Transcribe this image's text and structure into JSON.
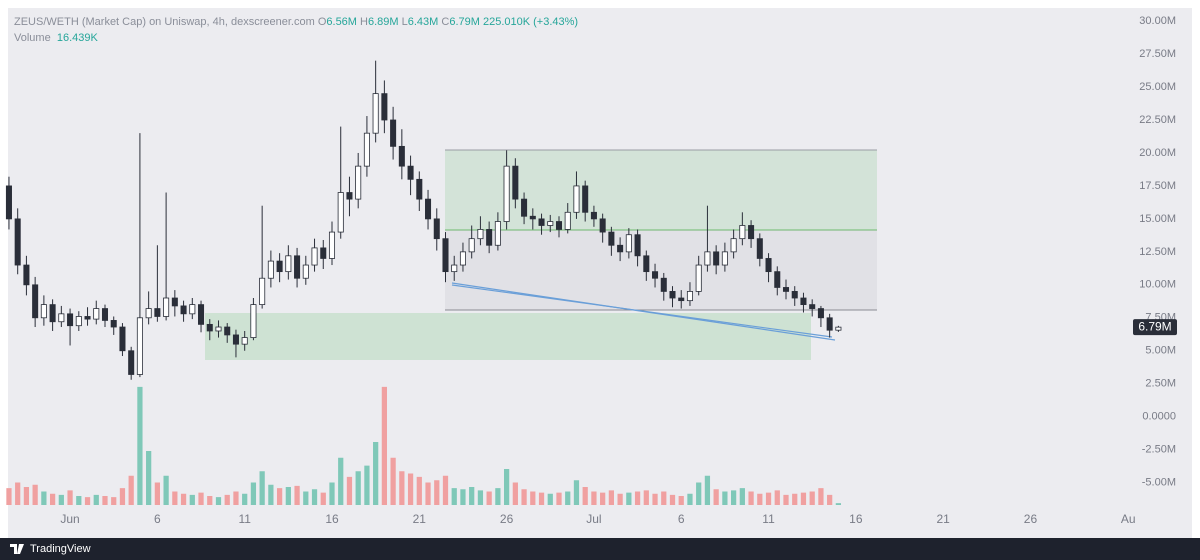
{
  "chart_data": {
    "type": "candlestick",
    "title": "ZEUS/WETH (Market Cap) on Uniswap, 4h, dexscreener.com",
    "header": {
      "o_label": "O",
      "open": "6.56M",
      "h_label": "H",
      "high": "6.89M",
      "l_label": "L",
      "low": "6.43M",
      "c_label": "C",
      "close": "6.79M",
      "change": "225.010K (+3.43%)",
      "volume_label": "Volume",
      "volume": "16.439K"
    },
    "x": [
      -3.5,
      -3,
      -2.5,
      -2,
      -1.5,
      -1,
      -0.5,
      0,
      0.5,
      1,
      1.5,
      2,
      2.5,
      3,
      3.5,
      4,
      4.5,
      5,
      5.5,
      6,
      6.5,
      7,
      7.5,
      8,
      8.5,
      9,
      9.5,
      10,
      10.5,
      11,
      11.5,
      12,
      12.5,
      13,
      13.5,
      14,
      14.5,
      15,
      15.5,
      16,
      16.5,
      17,
      17.5,
      18,
      18.5,
      19,
      19.5,
      20,
      20.5,
      21,
      21.5,
      22,
      22.5,
      23,
      23.5,
      24,
      24.5,
      25,
      25.5,
      26,
      26.5,
      27,
      27.5,
      28,
      28.5,
      29,
      29.5,
      30,
      30.5,
      31,
      31.5,
      32,
      32.5,
      33,
      33.5,
      34,
      34.5,
      35,
      35.5,
      36,
      36.5,
      37,
      37.5,
      38,
      38.5,
      39,
      39.5,
      40,
      40.5,
      41,
      41.5,
      42,
      42.5,
      43,
      43.5,
      44
    ],
    "open": [
      17.5,
      15.0,
      11.5,
      10.0,
      7.5,
      8.5,
      7.2,
      7.8,
      6.9,
      7.6,
      7.4,
      8.2,
      7.3,
      6.8,
      5.0,
      3.2,
      7.5,
      8.2,
      7.6,
      9.0,
      8.4,
      7.8,
      8.5,
      7.0,
      6.5,
      6.8,
      6.2,
      5.5,
      6.0,
      8.5,
      10.5,
      11.8,
      11.0,
      12.2,
      10.5,
      11.5,
      12.8,
      12.0,
      14.0,
      17.0,
      16.5,
      19.0,
      21.5,
      24.5,
      22.5,
      20.5,
      19.0,
      18.0,
      16.5,
      15.0,
      13.5,
      11.0,
      11.5,
      12.5,
      13.5,
      14.2,
      13.0,
      14.8,
      19.0,
      16.5,
      15.2,
      15.0,
      14.5,
      14.8,
      14.2,
      15.5,
      17.5,
      15.5,
      15.0,
      14.0,
      13.0,
      12.5,
      13.8,
      12.2,
      11.0,
      10.5,
      9.5,
      9.0,
      8.8,
      9.5,
      11.5,
      12.5,
      11.5,
      12.5,
      13.5,
      14.5,
      13.5,
      12.0,
      11.0,
      9.8,
      9.5,
      9.0,
      8.5,
      8.2,
      7.5,
      6.56
    ],
    "high": [
      18.2,
      15.8,
      12.2,
      10.6,
      9.2,
      8.9,
      8.4,
      8.2,
      8.0,
      8.3,
      8.8,
      8.5,
      7.6,
      7.1,
      5.3,
      21.5,
      9.5,
      13.0,
      17.0,
      9.6,
      8.8,
      9.0,
      8.8,
      7.4,
      7.3,
      7.1,
      6.6,
      6.5,
      9.0,
      16.0,
      12.6,
      12.4,
      13.0,
      12.8,
      12.2,
      13.5,
      13.4,
      14.8,
      22.0,
      18.2,
      20.0,
      22.8,
      27.0,
      25.5,
      23.5,
      21.8,
      19.8,
      18.6,
      17.2,
      15.8,
      14.0,
      12.2,
      13.2,
      14.5,
      15.2,
      14.8,
      15.5,
      20.2,
      19.6,
      17.0,
      15.8,
      15.4,
      15.3,
      15.2,
      16.2,
      18.6,
      17.9,
      16.0,
      15.4,
      14.4,
      13.6,
      14.3,
      14.2,
      12.6,
      11.6,
      10.9,
      9.9,
      9.6,
      10.2,
      12.2,
      16.0,
      13.0,
      13.2,
      14.2,
      15.5,
      14.9,
      13.9,
      12.4,
      11.4,
      10.4,
      9.9,
      9.4,
      8.9,
      8.4,
      7.8,
      6.89
    ],
    "low": [
      14.2,
      10.8,
      9.2,
      6.8,
      6.9,
      6.5,
      6.8,
      5.4,
      6.5,
      6.9,
      7.0,
      6.8,
      6.2,
      4.6,
      2.8,
      3.0,
      7.0,
      7.2,
      7.3,
      7.6,
      7.2,
      7.4,
      6.4,
      5.8,
      6.0,
      5.6,
      4.5,
      5.0,
      5.8,
      8.2,
      9.8,
      10.2,
      10.4,
      9.8,
      10.0,
      11.0,
      11.2,
      11.5,
      13.5,
      15.2,
      15.8,
      18.2,
      20.8,
      21.5,
      19.5,
      18.0,
      16.8,
      15.6,
      14.2,
      12.6,
      10.2,
      10.3,
      11.0,
      12.0,
      13.0,
      12.4,
      12.6,
      14.2,
      15.8,
      14.6,
      14.2,
      13.8,
      14.0,
      13.6,
      13.9,
      15.0,
      14.8,
      14.4,
      13.2,
      12.2,
      11.8,
      12.0,
      11.4,
      10.3,
      9.8,
      8.8,
      8.3,
      8.2,
      8.4,
      9.2,
      11.0,
      10.8,
      11.0,
      12.0,
      13.0,
      12.8,
      11.4,
      10.2,
      9.2,
      8.9,
      8.4,
      7.9,
      7.6,
      6.8,
      6.0,
      6.43
    ],
    "close": [
      15.0,
      11.5,
      10.0,
      7.5,
      8.5,
      7.2,
      7.8,
      6.9,
      7.6,
      7.4,
      8.2,
      7.3,
      6.8,
      5.0,
      3.2,
      7.5,
      8.2,
      7.6,
      9.0,
      8.4,
      7.8,
      8.5,
      7.0,
      6.5,
      6.8,
      6.2,
      5.5,
      6.0,
      8.5,
      10.5,
      11.8,
      11.0,
      12.2,
      10.5,
      11.5,
      12.8,
      12.0,
      14.0,
      17.0,
      16.5,
      19.0,
      21.5,
      24.5,
      22.5,
      20.5,
      19.0,
      18.0,
      16.5,
      15.0,
      13.5,
      11.0,
      11.5,
      12.5,
      13.5,
      14.2,
      13.0,
      14.8,
      19.0,
      16.5,
      15.2,
      15.0,
      14.5,
      14.8,
      14.2,
      15.5,
      17.5,
      15.5,
      15.0,
      14.0,
      13.0,
      12.5,
      13.8,
      12.2,
      11.0,
      10.5,
      9.5,
      9.0,
      8.8,
      9.5,
      11.5,
      12.5,
      11.5,
      12.5,
      13.5,
      14.5,
      13.5,
      12.0,
      11.0,
      9.8,
      9.5,
      9.0,
      8.5,
      8.2,
      7.5,
      6.56,
      6.79
    ],
    "volume": [
      150,
      200,
      160,
      180,
      120,
      100,
      90,
      130,
      80,
      70,
      90,
      80,
      70,
      150,
      260,
      1050,
      480,
      200,
      260,
      120,
      100,
      90,
      110,
      80,
      70,
      90,
      120,
      100,
      200,
      300,
      180,
      150,
      160,
      170,
      120,
      140,
      110,
      200,
      420,
      250,
      300,
      350,
      560,
      1050,
      420,
      300,
      280,
      250,
      200,
      220,
      260,
      150,
      140,
      160,
      130,
      120,
      150,
      320,
      200,
      140,
      120,
      110,
      100,
      110,
      120,
      220,
      160,
      120,
      110,
      130,
      100,
      110,
      120,
      130,
      100,
      120,
      90,
      80,
      100,
      200,
      260,
      140,
      120,
      130,
      150,
      120,
      100,
      110,
      130,
      90,
      100,
      110,
      120,
      150,
      90,
      16.439
    ],
    "up_color": "#ffffff",
    "down_color": "#2a2e39",
    "volume_up_color": "#7fc8b8",
    "volume_down_color": "#f0a0a0",
    "xlim": [
      -3.44,
      60.7
    ],
    "xticks": [
      {
        "value": 0,
        "label": "Jun"
      },
      {
        "value": 5,
        "label": "6"
      },
      {
        "value": 10,
        "label": "11"
      },
      {
        "value": 15,
        "label": "16"
      },
      {
        "value": 20,
        "label": "21"
      },
      {
        "value": 25,
        "label": "26"
      },
      {
        "value": 30,
        "label": "Jul"
      },
      {
        "value": 35,
        "label": "6"
      },
      {
        "value": 40,
        "label": "11"
      },
      {
        "value": 45,
        "label": "16"
      },
      {
        "value": 50,
        "label": "21"
      },
      {
        "value": 55,
        "label": "26"
      },
      {
        "value": 60.6,
        "label": "Au"
      }
    ],
    "ylim": [
      -9.2,
      31.6
    ],
    "yticks": [
      {
        "value": -5,
        "label": "-5.00M"
      },
      {
        "value": -2.5,
        "label": "-2.50M"
      },
      {
        "value": 0,
        "label": "0.0000"
      },
      {
        "value": 2.5,
        "label": "2.50M"
      },
      {
        "value": 5,
        "label": "5.00M"
      },
      {
        "value": 7.5,
        "label": "7.50M"
      },
      {
        "value": 10,
        "label": "10.00M"
      },
      {
        "value": 12.5,
        "label": "12.50M"
      },
      {
        "value": 15,
        "label": "15.00M"
      },
      {
        "value": 17.5,
        "label": "17.50M"
      },
      {
        "value": 20,
        "label": "20.00M"
      },
      {
        "value": 22.5,
        "label": "22.50M"
      },
      {
        "value": 25,
        "label": "25.00M"
      },
      {
        "value": 27.5,
        "label": "27.50M"
      },
      {
        "value": 30,
        "label": "30.00M"
      }
    ],
    "vlim": [
      0,
      1200
    ],
    "watermark": "TradingView"
  }
}
